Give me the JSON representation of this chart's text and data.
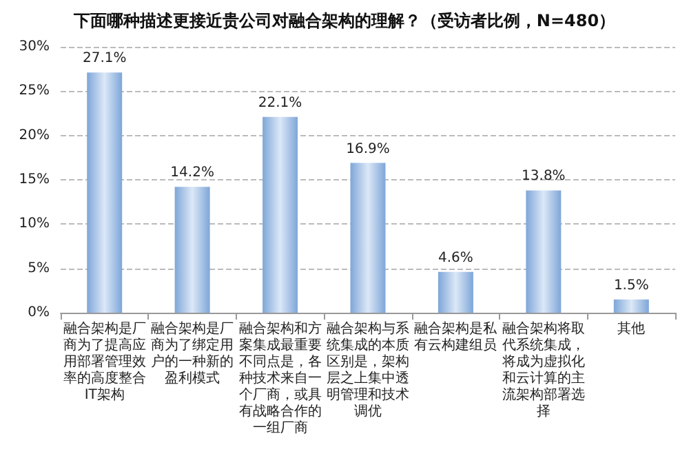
{
  "chart_data": {
    "type": "bar",
    "title": "下面哪种描述更接近贵公司对融合架构的理解？（受访者比例，N=480）",
    "categories": [
      "融合架构是厂商为了提高应用部署管理效率的高度整合IT架构",
      "融合架构是厂商为了绑定用户的一种新的盈利模式",
      "融合架构和方案集成最重要不同点是，各种技术来自一个厂商，或具有战略合作的一组厂商",
      "融合架构与系统集成的本质区别是，架构层之上集中透明管理和技术调优",
      "融合架构是私有云构建组员",
      "融合架构将取代系统集成，将成为虚拟化和云计算的主流架构部署选择",
      "其他"
    ],
    "values": [
      27.1,
      14.2,
      22.1,
      16.9,
      4.6,
      13.8,
      1.5
    ],
    "value_labels": [
      "27.1%",
      "14.2%",
      "22.1%",
      "16.9%",
      "4.6%",
      "13.8%",
      "1.5%"
    ],
    "color": "#7ea6d8",
    "ylim": [
      0,
      30
    ],
    "yticks": [
      {
        "value": 0,
        "label": "0%"
      },
      {
        "value": 5,
        "label": "5%"
      },
      {
        "value": 10,
        "label": "10%"
      },
      {
        "value": 15,
        "label": "15%"
      },
      {
        "value": 20,
        "label": "20%"
      },
      {
        "value": 25,
        "label": "25%"
      },
      {
        "value": 30,
        "label": "30%"
      }
    ],
    "grid": "y"
  }
}
